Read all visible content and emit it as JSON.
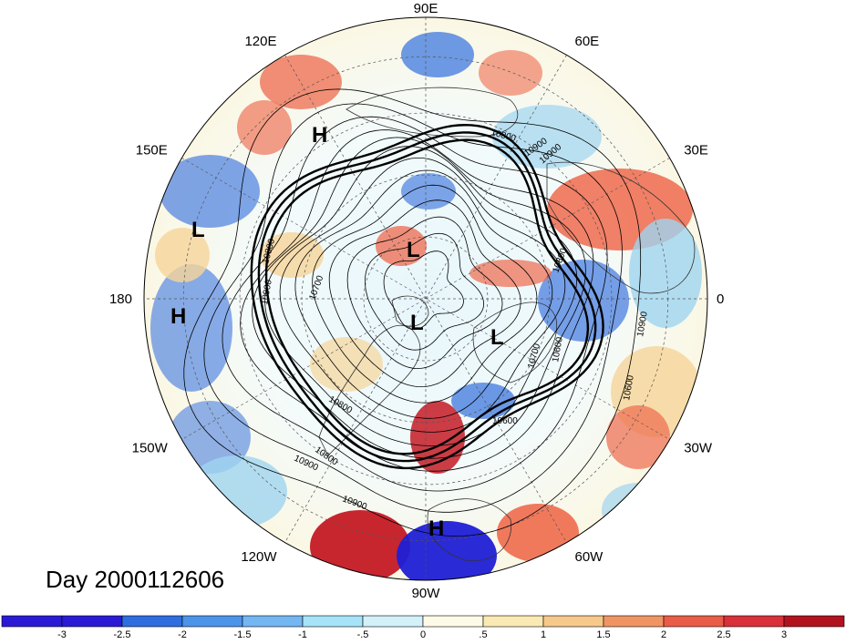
{
  "map": {
    "projection": "polar stereographic",
    "hemisphere": "northern",
    "date_label": "Day 2000112606",
    "longitude_labels": [
      {
        "text": "90E",
        "lon_east": 90
      },
      {
        "text": "60E",
        "lon_east": 60
      },
      {
        "text": "30E",
        "lon_east": 30
      },
      {
        "text": "0",
        "lon_east": 0
      },
      {
        "text": "30W",
        "lon_east": -30
      },
      {
        "text": "60W",
        "lon_east": -60
      },
      {
        "text": "90W",
        "lon_east": -90
      },
      {
        "text": "120W",
        "lon_east": -120
      },
      {
        "text": "150W",
        "lon_east": -150
      },
      {
        "text": "180",
        "lon_east": 180
      },
      {
        "text": "150E",
        "lon_east": 150
      },
      {
        "text": "120E",
        "lon_east": 120
      }
    ],
    "contour_labels": [
      "10800",
      "10900",
      "10800",
      "10900",
      "10700",
      "10800",
      "10900",
      "10800",
      "10600",
      "10900",
      "10600",
      "10800",
      "10900",
      "10700",
      "10600",
      "10900"
    ],
    "pressure_markers": [
      {
        "text": "H",
        "position_desc": "near 120E, mid-latitude"
      },
      {
        "text": "L",
        "position_desc": "near 165E, subtropics"
      },
      {
        "text": "L",
        "position_desc": "polar region, eastern Siberia side"
      },
      {
        "text": "H",
        "position_desc": "near 175W, subtropics"
      },
      {
        "text": "L",
        "position_desc": "near the pole"
      },
      {
        "text": "L",
        "position_desc": "Greenland / North Atlantic"
      },
      {
        "text": "H",
        "position_desc": "near 90W, subtropics"
      }
    ],
    "colors": {
      "ocean_background": "#ffffff",
      "strong_negative": "#1f1fd6",
      "negative": "#4a7fe0",
      "weak_negative": "#9fd4f0",
      "neutral": "#fdf7e0",
      "weak_positive": "#f6d59a",
      "positive": "#ee6a4d",
      "strong_positive": "#c41a24",
      "contour": "#000000"
    }
  },
  "colorbar": {
    "ticks": [
      "-3",
      "-2.5",
      "-2",
      "-1.5",
      "-1",
      "-.5",
      "0",
      ".5",
      "1",
      "1.5",
      "2",
      "2.5",
      "3"
    ],
    "colors": [
      "#2a1ad6",
      "#2f6ee0",
      "#4c93ea",
      "#73b6f2",
      "#a6e3f8",
      "#d2f1f8",
      "#fdfbe8",
      "#fbe9b4",
      "#f6c98a",
      "#f19463",
      "#ea5b48",
      "#d9303a",
      "#b2121e"
    ]
  }
}
